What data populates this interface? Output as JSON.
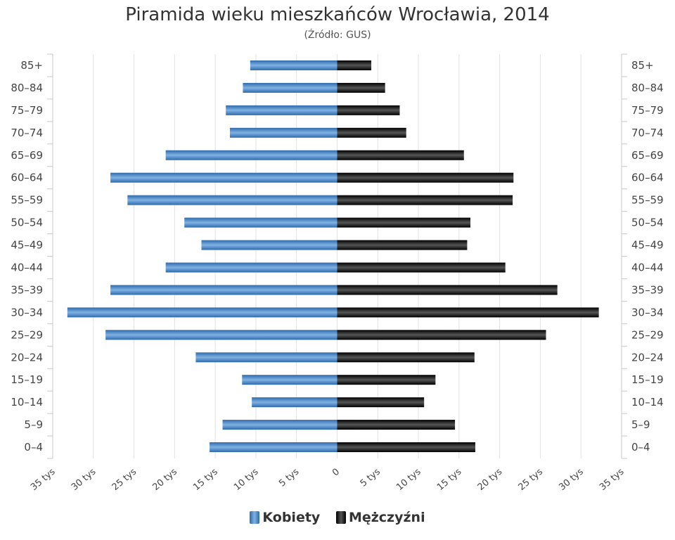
{
  "chart_data": {
    "type": "bar",
    "orientation": "horizontal-pyramid",
    "title": "Piramida wieku mieszkańców Wrocławia, 2014",
    "subtitle": "(Źródło: GUS)",
    "categories": [
      "85+",
      "80–84",
      "75–79",
      "70–74",
      "65–69",
      "60–64",
      "55–59",
      "50–54",
      "45–49",
      "40–44",
      "35–39",
      "30–34",
      "25–29",
      "20–24",
      "15–19",
      "10–14",
      "5–9",
      "0–4"
    ],
    "series": [
      {
        "name": "Kobiety",
        "color": "#4a86c6",
        "side": "left",
        "values": [
          10.7,
          11.6,
          13.7,
          13.2,
          21.1,
          27.9,
          25.8,
          18.8,
          16.7,
          21.1,
          27.9,
          33.2,
          28.5,
          17.4,
          11.7,
          10.5,
          14.1,
          15.7
        ]
      },
      {
        "name": "Mężczyźni",
        "color": "#1a1a1a",
        "side": "right",
        "values": [
          4.2,
          5.9,
          7.7,
          8.5,
          15.6,
          21.7,
          21.6,
          16.4,
          16.0,
          20.7,
          27.1,
          32.2,
          25.7,
          16.9,
          12.1,
          10.7,
          14.5,
          17.0
        ]
      }
    ],
    "xlim": [
      -35,
      35
    ],
    "xtick_labels": [
      "35 tys",
      "30 tys",
      "25 tys",
      "20 tys",
      "15 tys",
      "10 tys",
      "5 tys",
      "0",
      "5 tys",
      "10 tys",
      "15 tys",
      "20 tys",
      "25 tys",
      "30 tys",
      "35 tys"
    ],
    "grid": true,
    "legend_position": "bottom"
  }
}
